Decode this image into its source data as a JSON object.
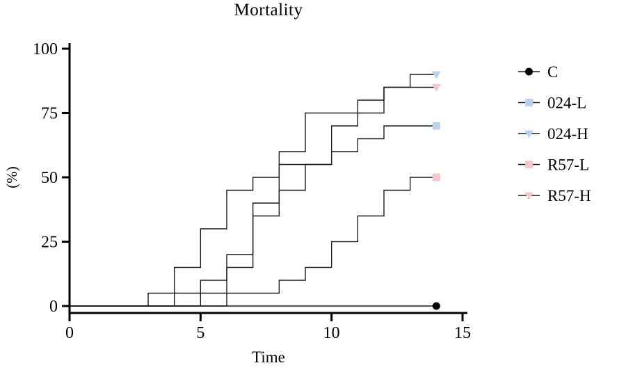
{
  "chart_data": {
    "type": "line",
    "subtype": "step-survival",
    "title": "Mortality",
    "xlabel": "Time",
    "ylabel": "(%)",
    "xlim": [
      0,
      15
    ],
    "ylim": [
      0,
      100
    ],
    "xticks": [
      0,
      5,
      10,
      15
    ],
    "yticks": [
      0,
      25,
      50,
      75,
      100
    ],
    "grid": false,
    "legend_position": "right",
    "axis_color": "#000000",
    "curve_color": "#1a1a1a",
    "series": [
      {
        "name": "C",
        "marker": "circle",
        "marker_color": "#000000",
        "end_x": 14,
        "final_value": 0,
        "steps": []
      },
      {
        "name": "024-L",
        "marker": "square",
        "marker_color": "#b9d3ee",
        "end_x": 14,
        "final_value": 70,
        "steps": [
          [
            6,
            15
          ],
          [
            7,
            35
          ],
          [
            8,
            45
          ],
          [
            9,
            55
          ],
          [
            10,
            60
          ],
          [
            11,
            65
          ],
          [
            12,
            70
          ]
        ]
      },
      {
        "name": "024-H",
        "marker": "triangle-down",
        "marker_color": "#b9d3ee",
        "end_x": 14,
        "final_value": 90,
        "steps": [
          [
            3,
            5
          ],
          [
            4,
            15
          ],
          [
            5,
            30
          ],
          [
            6,
            45
          ],
          [
            7,
            50
          ],
          [
            8,
            60
          ],
          [
            9,
            75
          ],
          [
            11,
            80
          ],
          [
            12,
            85
          ],
          [
            13,
            90
          ]
        ]
      },
      {
        "name": "R57-L",
        "marker": "square",
        "marker_color": "#f7c6ca",
        "end_x": 14,
        "final_value": 50,
        "steps": [
          [
            5,
            5
          ],
          [
            8,
            10
          ],
          [
            9,
            15
          ],
          [
            10,
            25
          ],
          [
            11,
            35
          ],
          [
            12,
            45
          ],
          [
            13,
            50
          ]
        ]
      },
      {
        "name": "R57-H",
        "marker": "triangle-down",
        "marker_color": "#f7c6ca",
        "end_x": 14,
        "final_value": 85,
        "steps": [
          [
            4,
            5
          ],
          [
            5,
            10
          ],
          [
            6,
            20
          ],
          [
            7,
            40
          ],
          [
            8,
            55
          ],
          [
            10,
            70
          ],
          [
            11,
            75
          ],
          [
            12,
            85
          ]
        ]
      }
    ]
  }
}
